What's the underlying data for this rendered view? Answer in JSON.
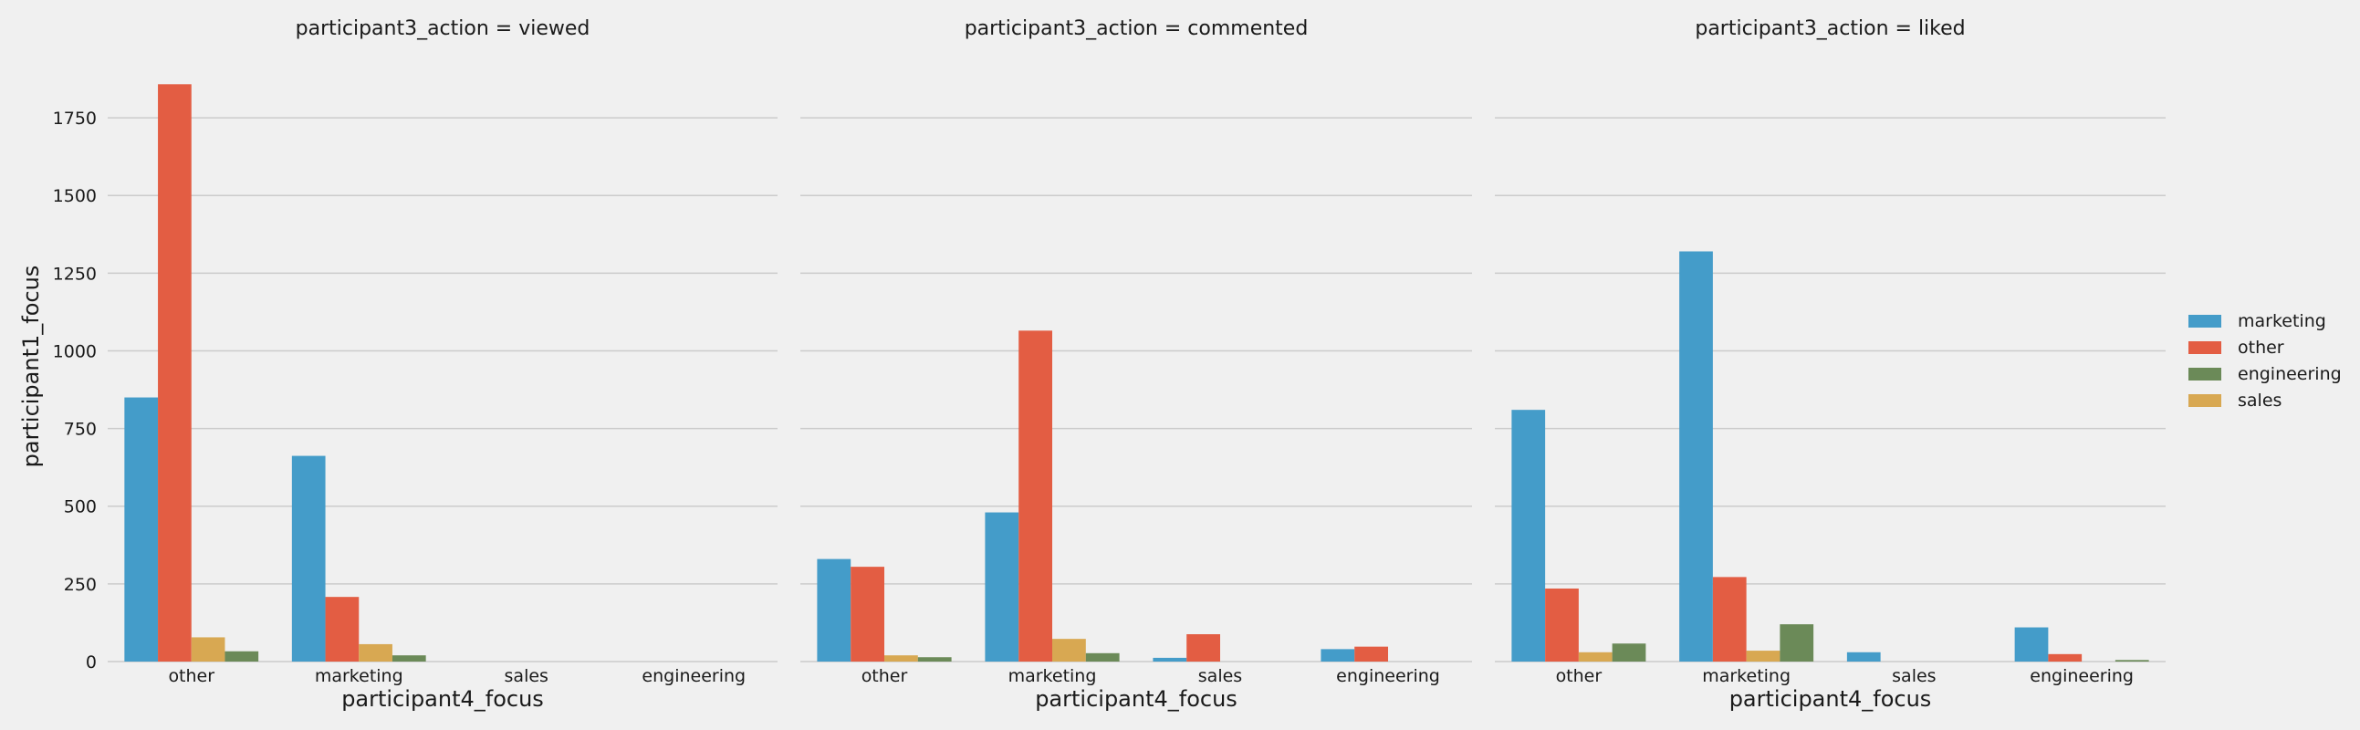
{
  "chart_data": {
    "type": "bar",
    "ylabel": "participant1_focus",
    "ylim": [
      0,
      1900
    ],
    "yticks": [
      0,
      250,
      500,
      750,
      1000,
      1250,
      1500,
      1750
    ],
    "grid": true,
    "legend_position": "right",
    "categories": [
      "other",
      "marketing",
      "sales",
      "engineering"
    ],
    "series_names": [
      "marketing",
      "other",
      "engineering",
      "sales"
    ],
    "colors": {
      "marketing": "#449cc9",
      "other": "#e35d43",
      "engineering": "#6b8a58",
      "sales": "#d8a852"
    },
    "hue_order_in_groups": [
      "marketing",
      "other",
      "sales",
      "engineering"
    ],
    "panels": [
      {
        "title": "participant3_action = viewed",
        "xlabel": "participant4_focus",
        "series": [
          {
            "name": "marketing",
            "values": [
              850,
              662,
              0,
              0
            ]
          },
          {
            "name": "other",
            "values": [
              1858,
              208,
              0,
              0
            ]
          },
          {
            "name": "sales",
            "values": [
              78,
              56,
              0,
              0
            ]
          },
          {
            "name": "engineering",
            "values": [
              33,
              20,
              0,
              0
            ]
          }
        ]
      },
      {
        "title": "participant3_action = commented",
        "xlabel": "participant4_focus",
        "series": [
          {
            "name": "marketing",
            "values": [
              330,
              480,
              12,
              40
            ]
          },
          {
            "name": "other",
            "values": [
              305,
              1065,
              88,
              48
            ]
          },
          {
            "name": "sales",
            "values": [
              20,
              73,
              0,
              0
            ]
          },
          {
            "name": "engineering",
            "values": [
              14,
              27,
              0,
              0
            ]
          }
        ]
      },
      {
        "title": "participant3_action = liked",
        "xlabel": "participant4_focus",
        "series": [
          {
            "name": "marketing",
            "values": [
              810,
              1320,
              30,
              110
            ]
          },
          {
            "name": "other",
            "values": [
              235,
              272,
              0,
              24
            ]
          },
          {
            "name": "sales",
            "values": [
              30,
              35,
              0,
              0
            ]
          },
          {
            "name": "engineering",
            "values": [
              58,
              120,
              0,
              5
            ]
          }
        ]
      }
    ]
  }
}
